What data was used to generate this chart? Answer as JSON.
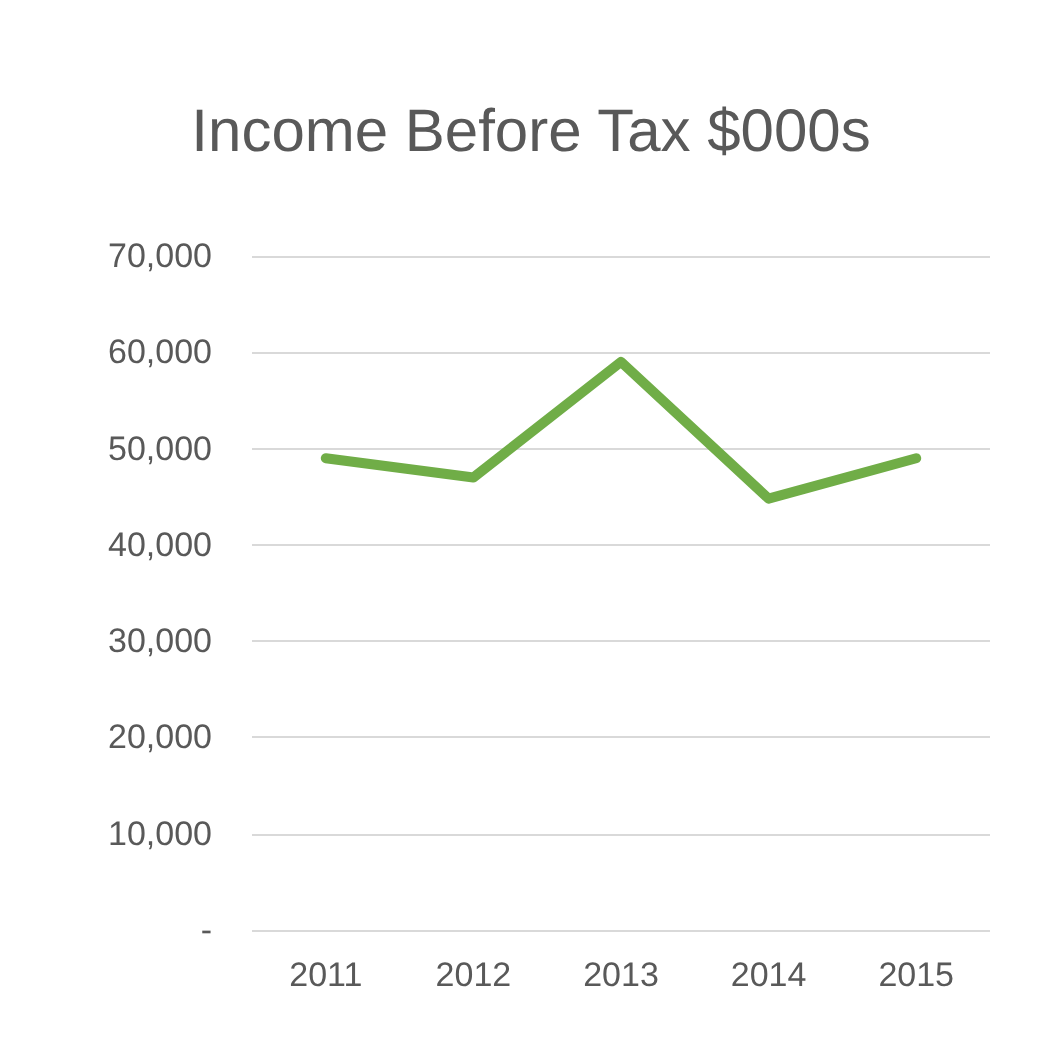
{
  "chart_data": {
    "type": "line",
    "title": "Income Before Tax $000s",
    "categories": [
      "2011",
      "2012",
      "2013",
      "2014",
      "2015"
    ],
    "series": [
      {
        "color": "#70ad47",
        "values": [
          49000,
          47000,
          59000,
          44800,
          49000
        ]
      }
    ],
    "ylim": [
      0,
      70000
    ],
    "yticks": [
      {
        "value": 0,
        "label": "-"
      },
      {
        "value": 10000,
        "label": "10,000"
      },
      {
        "value": 20000,
        "label": "20,000"
      },
      {
        "value": 30000,
        "label": "30,000"
      },
      {
        "value": 40000,
        "label": "40,000"
      },
      {
        "value": 50000,
        "label": "50,000"
      },
      {
        "value": 60000,
        "label": "60,000"
      },
      {
        "value": 70000,
        "label": "70,000"
      }
    ],
    "grid": "y",
    "marker": "none"
  }
}
